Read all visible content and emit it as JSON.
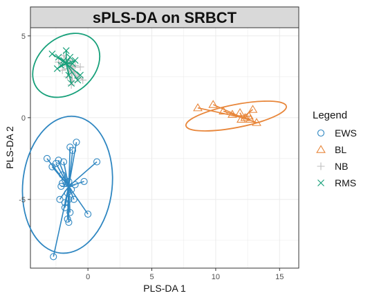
{
  "chart_data": {
    "type": "scatter",
    "title": "sPLS-DA on SRBCT",
    "xlabel": "PLS-DA 1",
    "ylabel": "PLS-DA 2",
    "xlim": [
      -4.5,
      16.5
    ],
    "ylim": [
      -9.2,
      5.5
    ],
    "xticks": [
      0,
      5,
      10,
      15
    ],
    "yticks": [
      -5,
      0,
      5
    ],
    "xtick_labels": [
      "0",
      "5",
      "10",
      "15"
    ],
    "ytick_labels": [
      "-5",
      "0",
      "5"
    ],
    "grid": true,
    "legend": {
      "title": "Legend",
      "placement": "right"
    },
    "series": [
      {
        "name": "EWS",
        "color": "#2e86c1",
        "marker": "circle",
        "centroid": [
          -1.5,
          -4.2
        ],
        "ellipse": {
          "center": [
            -1.6,
            -4.1
          ],
          "rx": 3.5,
          "ry": 4.2,
          "angle": 6
        },
        "points": [
          [
            -3.2,
            -2.5
          ],
          [
            -2.8,
            -3.0
          ],
          [
            -2.5,
            -2.8
          ],
          [
            -2.3,
            -2.6
          ],
          [
            -2.0,
            -3.5
          ],
          [
            -1.9,
            -2.7
          ],
          [
            -1.8,
            -3.8
          ],
          [
            -1.5,
            -3.9
          ],
          [
            -1.4,
            -1.8
          ],
          [
            -1.2,
            -2.0
          ],
          [
            -0.9,
            -1.5
          ],
          [
            0.7,
            -2.7
          ],
          [
            -0.3,
            -3.9
          ],
          [
            -2.1,
            -4.2
          ],
          [
            -1.6,
            -4.6
          ],
          [
            -1.3,
            -4.4
          ],
          [
            -1.0,
            -4.1
          ],
          [
            -2.2,
            -5.0
          ],
          [
            -1.8,
            -5.2
          ],
          [
            -1.5,
            -5.0
          ],
          [
            -1.1,
            -5.0
          ],
          [
            -1.8,
            -5.5
          ],
          [
            -1.4,
            -5.8
          ],
          [
            -1.6,
            -6.2
          ],
          [
            -1.5,
            -6.4
          ],
          [
            0.0,
            -5.9
          ],
          [
            -2.7,
            -8.5
          ],
          [
            -2.0,
            -4.0
          ]
        ]
      },
      {
        "name": "BL",
        "color": "#e8863a",
        "marker": "triangle",
        "centroid": [
          12.1,
          0.0
        ],
        "ellipse": {
          "center": [
            11.6,
            0.1
          ],
          "rx": 4.0,
          "ry": 0.7,
          "angle": -11
        },
        "points": [
          [
            8.6,
            0.6
          ],
          [
            9.8,
            0.8
          ],
          [
            10.6,
            0.4
          ],
          [
            11.3,
            0.2
          ],
          [
            11.9,
            0.3
          ],
          [
            12.3,
            0.0
          ],
          [
            12.7,
            -0.1
          ],
          [
            12.9,
            0.5
          ],
          [
            13.2,
            -0.3
          ],
          [
            12.6,
            0.1
          ],
          [
            12.0,
            -0.1
          ]
        ]
      },
      {
        "name": "NB",
        "color": "#bdbdbd",
        "marker": "plus",
        "centroid": [
          -1.3,
          3.1
        ],
        "ellipse": null,
        "points": [
          [
            -2.3,
            3.4
          ],
          [
            -1.9,
            3.8
          ],
          [
            -1.4,
            3.5
          ],
          [
            -1.0,
            3.2
          ],
          [
            -0.4,
            2.3
          ],
          [
            -0.8,
            2.4
          ],
          [
            -1.2,
            2.2
          ],
          [
            -1.6,
            2.5
          ],
          [
            -2.0,
            2.9
          ],
          [
            -1.8,
            3.3
          ],
          [
            -1.5,
            3.0
          ],
          [
            -1.1,
            2.8
          ],
          [
            -0.6,
            3.1
          ],
          [
            -1.3,
            2.0
          ]
        ]
      },
      {
        "name": "RMS",
        "color": "#17a07a",
        "marker": "x",
        "centroid": [
          -1.7,
          3.3
        ],
        "ellipse": {
          "center": [
            -1.7,
            3.2
          ],
          "rx": 2.9,
          "ry": 1.7,
          "angle": -40
        },
        "points": [
          [
            -2.8,
            3.9
          ],
          [
            -2.3,
            3.7
          ],
          [
            -1.7,
            4.1
          ],
          [
            -1.4,
            3.7
          ],
          [
            -1.0,
            3.5
          ],
          [
            -0.8,
            2.3
          ],
          [
            -1.3,
            2.1
          ],
          [
            -2.4,
            3.0
          ],
          [
            -1.5,
            2.6
          ],
          [
            -1.9,
            3.5
          ],
          [
            -1.2,
            3.3
          ],
          [
            -0.6,
            2.6
          ],
          [
            -2.1,
            3.2
          ]
        ]
      }
    ]
  }
}
